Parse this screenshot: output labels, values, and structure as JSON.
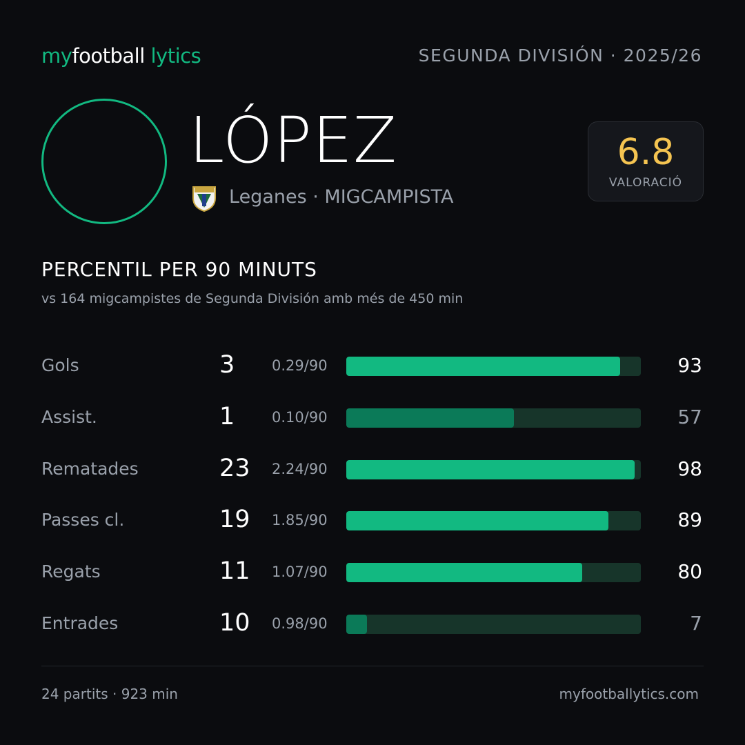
{
  "header": {
    "logo": [
      "my",
      "football",
      "lytics"
    ],
    "competition": "SEGUNDA DIVISIÓN · 2025/26"
  },
  "player": {
    "name": "LÓPEZ",
    "team_position": "Leganes · MIGCAMPISTA",
    "rating": "6.8",
    "rating_label": "VALORACIÓ"
  },
  "section": {
    "title": "PERCENTIL PER 90 MINUTS",
    "subtitle": "vs 164 migcampistes de Segunda División amb més de 450 min"
  },
  "rows": [
    {
      "label": "Gols",
      "count": 3,
      "per90": "0.29/90",
      "percentile": 93,
      "bar_color": "#12b981",
      "text_color": "#ffffff"
    },
    {
      "label": "Assist.",
      "count": 1,
      "per90": "0.10/90",
      "percentile": 57,
      "bar_color": "#0b7a58",
      "text_color": "#9aa1ab"
    },
    {
      "label": "Rematades",
      "count": 23,
      "per90": "2.24/90",
      "percentile": 98,
      "bar_color": "#12b981",
      "text_color": "#ffffff"
    },
    {
      "label": "Passes cl.",
      "count": 19,
      "per90": "1.85/90",
      "percentile": 89,
      "bar_color": "#12b981",
      "text_color": "#ffffff"
    },
    {
      "label": "Regats",
      "count": 11,
      "per90": "1.07/90",
      "percentile": 80,
      "bar_color": "#12b981",
      "text_color": "#ffffff"
    },
    {
      "label": "Entrades",
      "count": 10,
      "per90": "0.98/90",
      "percentile": 7,
      "bar_color": "#0b7a58",
      "text_color": "#9aa1ab"
    }
  ],
  "footer": {
    "stats": "24 partits · 923 min",
    "site": "myfootballytics.com"
  }
}
